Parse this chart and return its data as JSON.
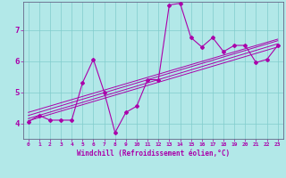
{
  "title": "",
  "xlabel": "Windchill (Refroidissement éolien,°C)",
  "ylabel": "",
  "bg_color": "#b2e8e8",
  "line_color": "#aa00aa",
  "xlim": [
    -0.5,
    23.5
  ],
  "ylim": [
    3.5,
    7.9
  ],
  "xticks": [
    0,
    1,
    2,
    3,
    4,
    5,
    6,
    7,
    8,
    9,
    10,
    11,
    12,
    13,
    14,
    15,
    16,
    17,
    18,
    19,
    20,
    21,
    22,
    23
  ],
  "yticks": [
    4,
    5,
    6,
    7
  ],
  "data_x": [
    0,
    1,
    2,
    3,
    4,
    5,
    6,
    7,
    8,
    9,
    10,
    11,
    12,
    13,
    14,
    15,
    16,
    17,
    18,
    19,
    20,
    21,
    22,
    23
  ],
  "data_y": [
    4.05,
    4.25,
    4.1,
    4.1,
    4.1,
    5.3,
    6.05,
    5.0,
    3.7,
    4.35,
    4.55,
    5.4,
    5.4,
    7.8,
    7.85,
    6.75,
    6.45,
    6.75,
    6.3,
    6.5,
    6.5,
    5.95,
    6.05,
    6.5
  ],
  "reg_lines": [
    {
      "x0": 0,
      "y0": 4.08,
      "x1": 23,
      "y1": 6.45
    },
    {
      "x0": 0,
      "y0": 4.15,
      "x1": 23,
      "y1": 6.55
    },
    {
      "x0": 0,
      "y0": 4.25,
      "x1": 23,
      "y1": 6.65
    },
    {
      "x0": 0,
      "y0": 4.35,
      "x1": 23,
      "y1": 6.7
    }
  ],
  "grid_color": "#80cccc",
  "spine_color": "#666688"
}
